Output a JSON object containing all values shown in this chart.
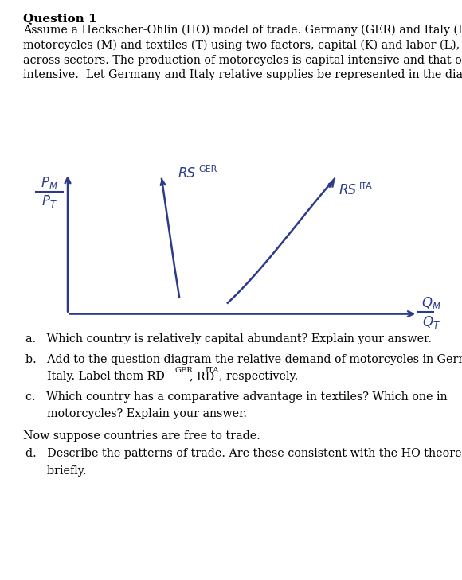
{
  "title": "Question 1",
  "curve_color": "#2b3a8a",
  "bg_color": "#ffffff",
  "text_color": "#000000",
  "para_line1": "Assume a Heckscher-Ohlin (HO) model of trade. Germany (GER) and Italy (ITA) produce",
  "para_line2": "motorcycles (M) and textiles (T) using two factors, capital (K) and labor (L), that are mobile",
  "para_line3": "across sectors. The production of motorcycles is capital intensive and that of textiles is labor-",
  "para_line4": "intensive.  Let Germany and Italy relative supplies be represented in the diagram below:",
  "qa": "a.   Which country is relatively capital abundant? Explain your answer.",
  "qb1": "b.   Add to the question diagram the relative demand of motorcycles in Germany and",
  "qb2": "      Italy. Label them RD",
  "qb2_sup1": "GER",
  "qb2_mid": ", RD",
  "qb2_sup2": "ITA",
  "qb2_end": ", respectively.",
  "qc1": "c.   Which country has a comparative advantage in textiles? Which one in",
  "qc2": "      motorcycles? Explain your answer.",
  "now_trade": "Now suppose countries are free to trade.",
  "qd1": "d.   Describe the patterns of trade. Are these consistent with the HO theorem? Explain",
  "qd2": "      briefly.",
  "ger_label": "RS",
  "ger_sup": "GER",
  "ita_label": "RS",
  "ita_sup": "ITA",
  "lw": 1.8
}
